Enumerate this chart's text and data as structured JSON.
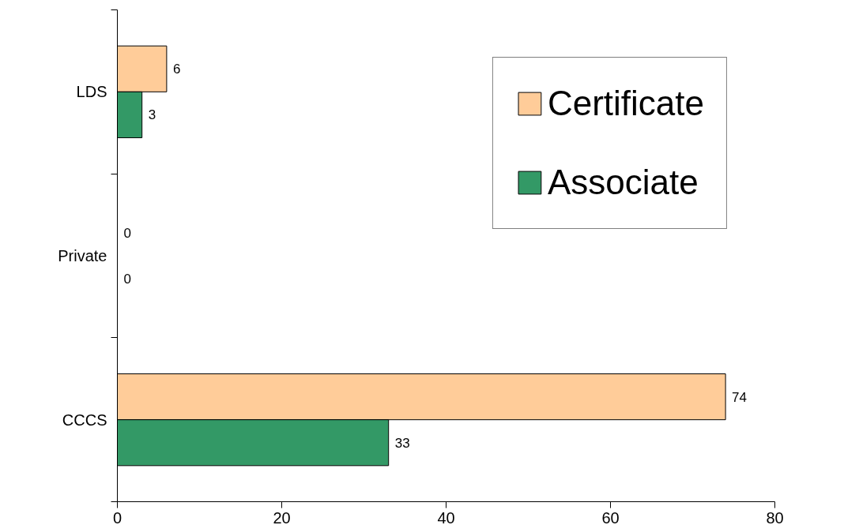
{
  "chart_data": {
    "type": "bar",
    "orientation": "horizontal",
    "categories": [
      "LDS",
      "Private",
      "CCCS"
    ],
    "series": [
      {
        "name": "Certificate",
        "color": "#ffcc99",
        "values": [
          6,
          0,
          74
        ]
      },
      {
        "name": "Associate",
        "color": "#339966",
        "values": [
          3,
          0,
          33
        ]
      }
    ],
    "xlim": [
      0,
      80
    ],
    "xticks": [
      0,
      20,
      40,
      60,
      80
    ],
    "data_labels": true,
    "legend": "top right",
    "grid": false
  }
}
